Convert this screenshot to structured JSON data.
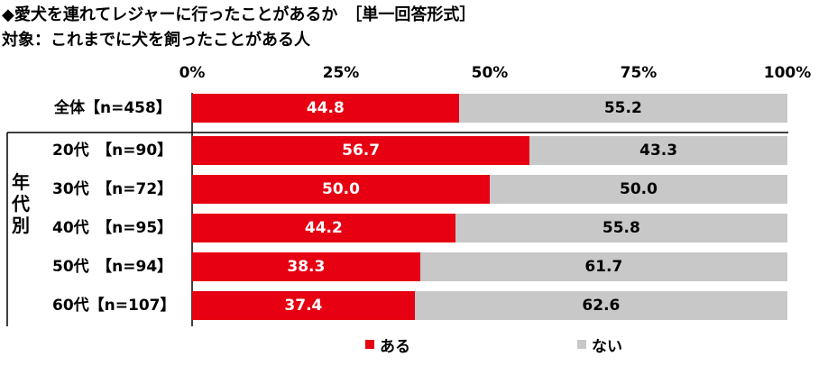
{
  "title": "◆愛犬を連れてレジャーに行ったことがあるか　［単一回答形式］",
  "subtitle": "対象：これまでに犬を飼ったことがある人",
  "group_label": "年代別",
  "colors": {
    "aru": "#e60012",
    "nai": "#c8c8c8"
  },
  "chart_data": {
    "type": "bar",
    "orientation": "horizontal",
    "stacked": true,
    "xlim": [
      0,
      100
    ],
    "ticks": [
      "0%",
      "25%",
      "50%",
      "75%",
      "100%"
    ],
    "tick_values": [
      0,
      25,
      50,
      75,
      100
    ],
    "categories": [
      "全体【n=458】",
      "20代　【n=90】",
      "30代　【n=72】",
      "40代　【n=95】",
      "50代　【n=94】",
      "60代【n=107】"
    ],
    "series": [
      {
        "name": "ある",
        "values": [
          44.8,
          56.7,
          50.0,
          44.2,
          38.3,
          37.4
        ]
      },
      {
        "name": "ない",
        "values": [
          55.2,
          43.3,
          50.0,
          55.8,
          61.7,
          62.6
        ]
      }
    ],
    "value_labels": {
      "ある": [
        "44.8",
        "56.7",
        "50.0",
        "44.2",
        "38.3",
        "37.4"
      ],
      "ない": [
        "55.2",
        "43.3",
        "50.0",
        "55.8",
        "61.7",
        "62.6"
      ]
    },
    "legend": [
      "ある",
      "ない"
    ],
    "legend_position": "bottom",
    "grid": false
  }
}
